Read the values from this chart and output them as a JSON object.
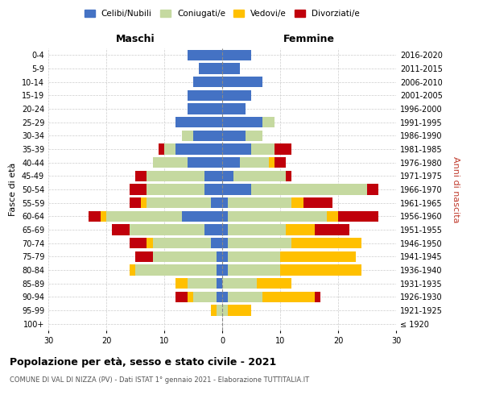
{
  "age_groups": [
    "100+",
    "95-99",
    "90-94",
    "85-89",
    "80-84",
    "75-79",
    "70-74",
    "65-69",
    "60-64",
    "55-59",
    "50-54",
    "45-49",
    "40-44",
    "35-39",
    "30-34",
    "25-29",
    "20-24",
    "15-19",
    "10-14",
    "5-9",
    "0-4"
  ],
  "birth_years": [
    "≤ 1920",
    "1921-1925",
    "1926-1930",
    "1931-1935",
    "1936-1940",
    "1941-1945",
    "1946-1950",
    "1951-1955",
    "1956-1960",
    "1961-1965",
    "1966-1970",
    "1971-1975",
    "1976-1980",
    "1981-1985",
    "1986-1990",
    "1991-1995",
    "1996-2000",
    "2001-2005",
    "2006-2010",
    "2011-2015",
    "2016-2020"
  ],
  "colors": {
    "celibi": "#4472c4",
    "coniugati": "#c5d9a0",
    "vedovi": "#ffc000",
    "divorziati": "#c0000b"
  },
  "maschi": {
    "celibi": [
      0,
      0,
      1,
      1,
      1,
      1,
      2,
      3,
      7,
      2,
      3,
      3,
      6,
      8,
      5,
      8,
      6,
      6,
      5,
      4,
      6
    ],
    "coniugati": [
      0,
      1,
      4,
      5,
      14,
      11,
      10,
      13,
      13,
      11,
      10,
      10,
      6,
      2,
      2,
      0,
      0,
      0,
      0,
      0,
      0
    ],
    "vedovi": [
      0,
      1,
      1,
      2,
      1,
      0,
      1,
      0,
      1,
      1,
      0,
      0,
      0,
      0,
      0,
      0,
      0,
      0,
      0,
      0,
      0
    ],
    "divorziati": [
      0,
      0,
      2,
      0,
      0,
      3,
      3,
      3,
      2,
      2,
      3,
      2,
      0,
      1,
      0,
      0,
      0,
      0,
      0,
      0,
      0
    ]
  },
  "femmine": {
    "celibi": [
      0,
      0,
      1,
      0,
      1,
      1,
      1,
      1,
      1,
      1,
      5,
      2,
      3,
      5,
      4,
      7,
      4,
      5,
      7,
      3,
      5
    ],
    "coniugati": [
      0,
      1,
      6,
      6,
      9,
      9,
      11,
      10,
      17,
      11,
      20,
      9,
      5,
      4,
      3,
      2,
      0,
      0,
      0,
      0,
      0
    ],
    "vedovi": [
      0,
      4,
      9,
      6,
      14,
      13,
      12,
      5,
      2,
      2,
      0,
      0,
      1,
      0,
      0,
      0,
      0,
      0,
      0,
      0,
      0
    ],
    "divorziati": [
      0,
      0,
      1,
      0,
      0,
      0,
      0,
      6,
      7,
      5,
      2,
      1,
      2,
      3,
      0,
      0,
      0,
      0,
      0,
      0,
      0
    ]
  },
  "xlim": 30,
  "title": "Popolazione per età, sesso e stato civile - 2021",
  "subtitle": "COMUNE DI VAL DI NIZZA (PV) - Dati ISTAT 1° gennaio 2021 - Elaborazione TUTTITALIA.IT",
  "ylabel_left": "Fasce di età",
  "ylabel_right": "Anni di nascita",
  "label_maschi": "Maschi",
  "label_femmine": "Femmine",
  "legend_labels": [
    "Celibi/Nubili",
    "Coniugati/e",
    "Vedovi/e",
    "Divorziati/e"
  ],
  "background_color": "#ffffff",
  "grid_color": "#cccccc"
}
